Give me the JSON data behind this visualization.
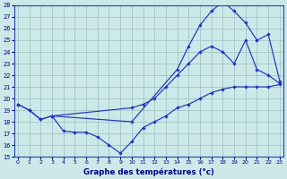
{
  "xlabel": "Graphe des températures (°c)",
  "ylim": [
    15,
    28
  ],
  "xlim": [
    -0.3,
    23.3
  ],
  "yticks": [
    15,
    16,
    17,
    18,
    19,
    20,
    21,
    22,
    23,
    24,
    25,
    26,
    27,
    28
  ],
  "xticks": [
    0,
    1,
    2,
    3,
    4,
    5,
    6,
    7,
    8,
    9,
    10,
    11,
    12,
    13,
    14,
    15,
    16,
    17,
    18,
    19,
    20,
    21,
    22,
    23
  ],
  "bg_color": "#cce8e8",
  "line_color": "#2233bb",
  "line1_x": [
    0,
    1,
    2,
    3,
    10,
    14,
    15,
    16,
    17,
    18,
    19,
    20,
    21,
    22,
    23
  ],
  "line1_y": [
    19.5,
    19.0,
    18.2,
    18.5,
    18.0,
    22.5,
    24.5,
    26.3,
    27.5,
    28.3,
    27.5,
    26.5,
    25.0,
    25.5,
    21.5
  ],
  "line2_x": [
    0,
    1,
    2,
    3,
    10,
    11,
    12,
    13,
    14,
    15,
    16,
    17,
    18,
    19,
    20,
    21,
    22,
    23
  ],
  "line2_y": [
    19.5,
    19.0,
    18.2,
    18.5,
    19.2,
    19.5,
    20.0,
    21.0,
    22.0,
    23.0,
    24.0,
    24.5,
    24.0,
    23.0,
    25.0,
    22.5,
    22.0,
    21.3
  ],
  "line3_x": [
    3,
    4,
    5,
    6,
    7,
    8,
    9,
    10,
    11,
    12,
    13,
    14,
    15,
    16,
    17,
    18,
    19,
    20,
    21,
    22,
    23
  ],
  "line3_y": [
    18.5,
    17.2,
    17.1,
    17.1,
    16.7,
    16.0,
    15.3,
    16.3,
    17.5,
    18.0,
    18.5,
    19.2,
    19.5,
    20.0,
    20.5,
    20.8,
    21.0,
    21.0,
    21.0,
    21.0,
    21.2
  ]
}
